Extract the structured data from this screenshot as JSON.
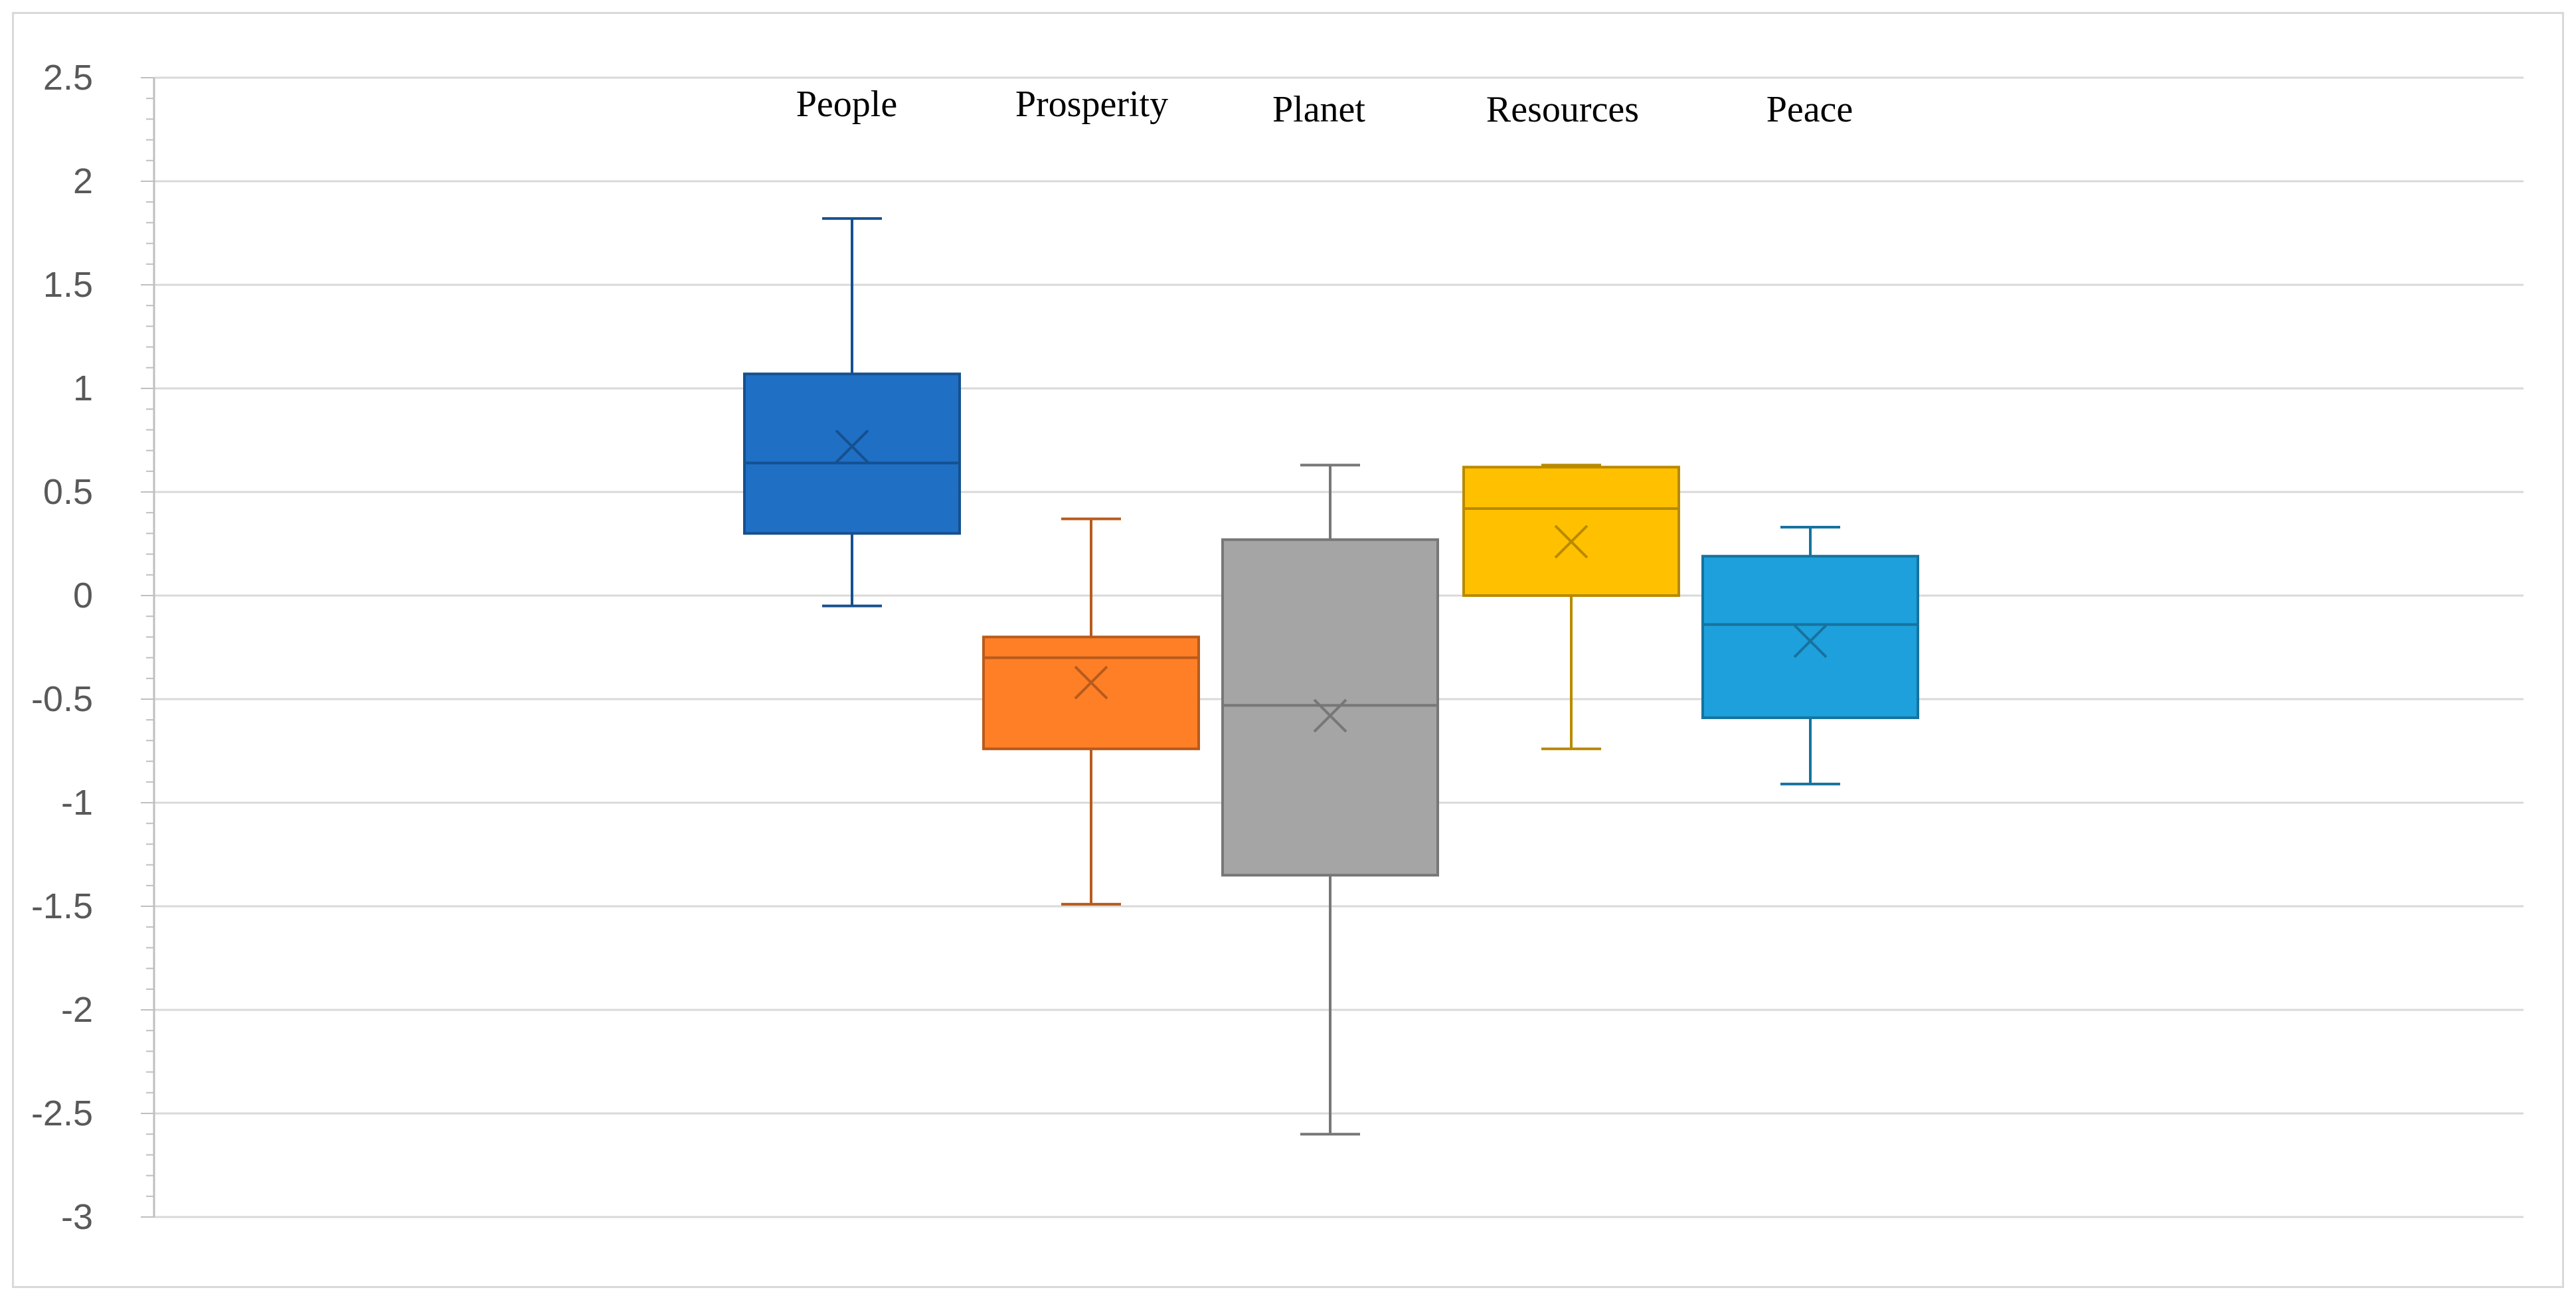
{
  "chart_data": {
    "type": "box",
    "title": "",
    "xlabel": "",
    "ylabel": "",
    "ylim": [
      -3,
      2.5
    ],
    "yticks": [
      2.5,
      2,
      1.5,
      1,
      0.5,
      0,
      -0.5,
      -1,
      -1.5,
      -2,
      -2.5,
      -3
    ],
    "ytick_labels": [
      "2.5",
      "2",
      "1.5",
      "1",
      "0.5",
      "0",
      "-0.5",
      "-1",
      "-1.5",
      "-2",
      "-2.5",
      "-3"
    ],
    "grid": true,
    "legend": "none",
    "categories": [
      "People",
      "Prosperity",
      "Planet",
      "Resources",
      "Peace"
    ],
    "series": [
      {
        "category": "People",
        "min": -0.05,
        "q1": 0.3,
        "median": 0.64,
        "q3": 1.07,
        "max": 1.82,
        "mean": 0.72,
        "color": "#1f6fc5"
      },
      {
        "category": "Prosperity",
        "min": -1.49,
        "q1": -0.74,
        "median": -0.3,
        "q3": -0.2,
        "max": 0.37,
        "mean": -0.42,
        "color": "#ff7f27"
      },
      {
        "category": "Planet",
        "min": -2.6,
        "q1": -1.35,
        "median": -0.53,
        "q3": 0.27,
        "max": 0.63,
        "mean": -0.58,
        "color": "#a5a5a5"
      },
      {
        "category": "Resources",
        "min": -0.74,
        "q1": 0.0,
        "median": 0.42,
        "q3": 0.62,
        "max": 0.63,
        "mean": 0.26,
        "color": "#ffc000"
      },
      {
        "category": "Peace",
        "min": -0.91,
        "q1": -0.59,
        "median": -0.14,
        "q3": 0.19,
        "max": 0.33,
        "mean": -0.22,
        "color": "#1ea0dc"
      }
    ]
  }
}
